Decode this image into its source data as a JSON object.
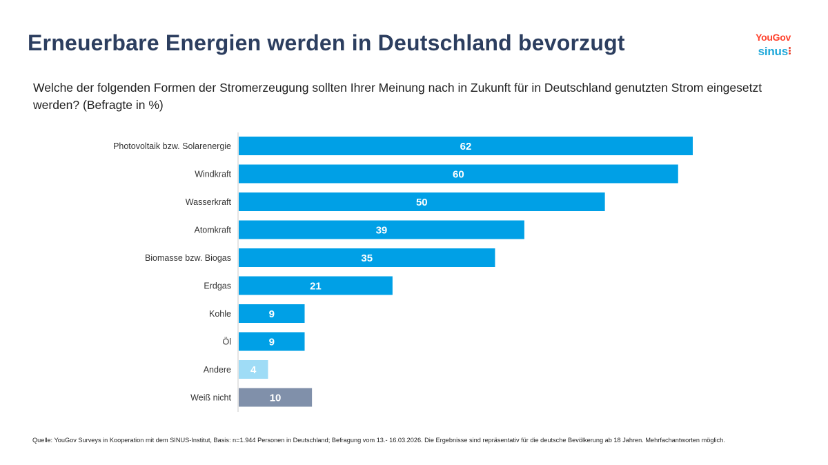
{
  "header": {
    "title": "Erneuerbare Energien werden in Deutschland bevorzugt",
    "logo_yougov": "YouGov",
    "logo_sinus": "sinus"
  },
  "chart_data": {
    "type": "bar",
    "orientation": "horizontal",
    "title": "Welche der folgenden Formen der Stromerzeugung sollten Ihrer Meinung nach in Zukunft für in Deutschland genutzten Strom eingesetzt werden? (Befragte in %)",
    "categories": [
      "Photovoltaik bzw. Solarenergie",
      "Windkraft",
      "Wasserkraft",
      "Atomkraft",
      "Biomasse bzw. Biogas",
      "Erdgas",
      "Kohle",
      "Öl",
      "Andere",
      "Weiß nicht"
    ],
    "values": [
      62,
      60,
      50,
      39,
      35,
      21,
      9,
      9,
      4,
      10
    ],
    "colors": [
      "#00a0e6",
      "#00a0e6",
      "#00a0e6",
      "#00a0e6",
      "#00a0e6",
      "#00a0e6",
      "#00a0e6",
      "#00a0e6",
      "#9fdcf6",
      "#8090aa"
    ],
    "xlim": [
      0,
      62
    ],
    "xlabel": "",
    "ylabel": "",
    "grid": false,
    "data_labels": true
  },
  "footer": {
    "source": "Quelle: YouGov Surveys in Kooperation mit dem SINUS-Institut, Basis: n=1.944 Personen in Deutschland; Befragung vom 13.- 16.03.2026. Die Ergebnisse sind repräsentativ für die deutsche Bevölkerung ab 18 Jahren. Mehrfachantworten möglich."
  }
}
